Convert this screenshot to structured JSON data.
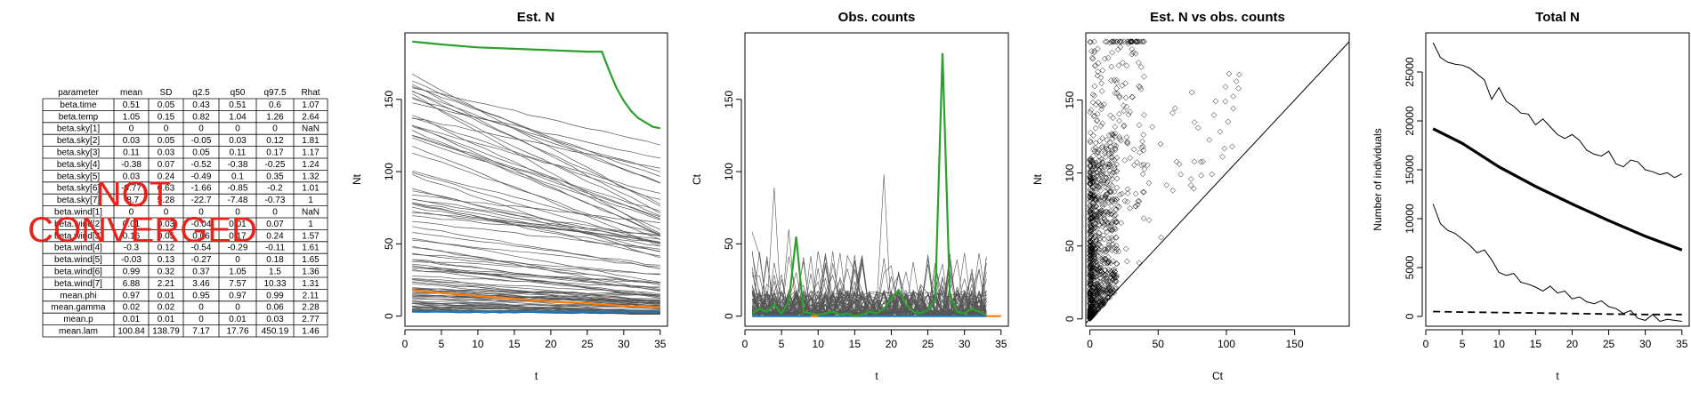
{
  "summary_table": {
    "headers": [
      "parameter",
      "mean",
      "SD",
      "q2.5",
      "q50",
      "q97.5",
      "Rhat"
    ],
    "rows": [
      [
        "beta.time",
        "0.51",
        "0.05",
        "0.43",
        "0.51",
        "0.6",
        "1.07"
      ],
      [
        "beta.temp",
        "1.05",
        "0.15",
        "0.82",
        "1.04",
        "1.26",
        "2.64"
      ],
      [
        "beta.sky[1]",
        "0",
        "0",
        "0",
        "0",
        "0",
        "NaN"
      ],
      [
        "beta.sky[2]",
        "0.03",
        "0.05",
        "-0.05",
        "0.03",
        "0.12",
        "1.81"
      ],
      [
        "beta.sky[3]",
        "0.11",
        "0.03",
        "0.05",
        "0.11",
        "0.17",
        "1.17"
      ],
      [
        "beta.sky[4]",
        "-0.38",
        "0.07",
        "-0.52",
        "-0.38",
        "-0.25",
        "1.24"
      ],
      [
        "beta.sky[5]",
        "0.03",
        "0.24",
        "-0.49",
        "0.1",
        "0.35",
        "1.32"
      ],
      [
        "beta.sky[6]",
        "-0.77",
        "0.63",
        "-1.66",
        "-0.85",
        "-0.2",
        "1.01"
      ],
      [
        "beta.sky[7]",
        "-8.7",
        "5.28",
        "-22.7",
        "-7.48",
        "-0.73",
        "1"
      ],
      [
        "beta.wind[1]",
        "0",
        "0",
        "0",
        "0",
        "0",
        "NaN"
      ],
      [
        "beta.wind[2]",
        "0.01",
        "0.03",
        "-0.04",
        "0.01",
        "0.07",
        "1"
      ],
      [
        "beta.wind[3]",
        "0.16",
        "0.05",
        "0.06",
        "0.17",
        "0.24",
        "1.57"
      ],
      [
        "beta.wind[4]",
        "-0.3",
        "0.12",
        "-0.54",
        "-0.29",
        "-0.11",
        "1.61"
      ],
      [
        "beta.wind[5]",
        "-0.03",
        "0.13",
        "-0.27",
        "0",
        "0.18",
        "1.65"
      ],
      [
        "beta.wind[6]",
        "0.99",
        "0.32",
        "0.37",
        "1.05",
        "1.5",
        "1.36"
      ],
      [
        "beta.wind[7]",
        "6.88",
        "2.21",
        "3.46",
        "7.57",
        "10.33",
        "1.31"
      ],
      [
        "mean.phi",
        "0.97",
        "0.01",
        "0.95",
        "0.97",
        "0.99",
        "2.11"
      ],
      [
        "mean.gamma",
        "0.02",
        "0.02",
        "0",
        "0",
        "0.06",
        "2.28"
      ],
      [
        "mean.p",
        "0.01",
        "0.01",
        "0",
        "0.01",
        "0.03",
        "2.77"
      ],
      [
        "mean.lam",
        "100.84",
        "138.79",
        "7.17",
        "17.76",
        "450.19",
        "1.46"
      ]
    ],
    "stamp": [
      "NOT",
      "CONVERGED"
    ],
    "stamp_color": "#e8231c"
  },
  "chart_data": [
    {
      "type": "line",
      "title": "Est. N",
      "xlabel": "t",
      "ylabel": "Nt",
      "xlim": [
        0,
        36
      ],
      "ylim": [
        -7,
        196
      ],
      "xticks": [
        0,
        5,
        10,
        15,
        20,
        25,
        30,
        35
      ],
      "yticks": [
        0,
        50,
        100,
        150
      ],
      "grid": false,
      "background_series": {
        "count": 110,
        "color": "#555555",
        "x": [
          1,
          35
        ],
        "start_range": [
          3,
          178
        ],
        "end_range": [
          1,
          106
        ]
      },
      "series": [
        {
          "color": "#2ca02c",
          "x": [
            1,
            3,
            5,
            10,
            15,
            20,
            25,
            27,
            28,
            29,
            30,
            31,
            32,
            33,
            34,
            35
          ],
          "values": [
            190,
            189,
            188,
            186,
            185,
            184,
            183,
            183,
            170,
            158,
            149,
            142,
            137,
            134,
            131,
            130
          ]
        },
        {
          "color": "#ff7f0e",
          "x": [
            1,
            5,
            10,
            15,
            20,
            25,
            30,
            35
          ],
          "values": [
            18,
            16,
            14,
            12,
            10,
            9,
            7,
            6
          ]
        },
        {
          "color": "#1f77b4",
          "x": [
            1,
            35
          ],
          "values": [
            3,
            3
          ]
        }
      ]
    },
    {
      "type": "line",
      "title": "Obs. counts",
      "xlabel": "t",
      "ylabel": "Ct",
      "xlim": [
        0,
        36
      ],
      "ylim": [
        -7,
        196
      ],
      "xticks": [
        0,
        5,
        10,
        15,
        20,
        25,
        30,
        35
      ],
      "yticks": [
        0,
        50,
        100,
        150
      ],
      "grid": false,
      "background_series": {
        "count": 70,
        "color": "#555555",
        "x": [
          1,
          33
        ],
        "peaks": [
          [
            4,
            89
          ],
          [
            19,
            98
          ],
          [
            6,
            60
          ],
          [
            12,
            45
          ],
          [
            25,
            40
          ],
          [
            16,
            42
          ],
          [
            1,
            58
          ]
        ]
      },
      "series": [
        {
          "color": "#2ca02c",
          "x": [
            1,
            2,
            3,
            4,
            5,
            6,
            7,
            8,
            9,
            10,
            11,
            12,
            13,
            14,
            15,
            16,
            17,
            18,
            19,
            20,
            21,
            22,
            23,
            24,
            25,
            26,
            27,
            28,
            29,
            30,
            31,
            32,
            33
          ],
          "values": [
            2,
            5,
            3,
            8,
            2,
            10,
            55,
            3,
            2,
            1,
            2,
            3,
            1,
            2,
            0,
            1,
            3,
            2,
            5,
            12,
            18,
            8,
            3,
            2,
            4,
            12,
            182,
            15,
            3,
            2,
            5,
            3,
            1
          ]
        },
        {
          "color": "#ff7f0e",
          "x": [
            9,
            10,
            33,
            35
          ],
          "values": [
            0,
            0,
            0,
            0
          ]
        },
        {
          "color": "#1f77b4",
          "x": [
            1,
            33
          ],
          "values": [
            0,
            0
          ]
        }
      ]
    },
    {
      "type": "scatter",
      "title": "Est. N vs obs. counts",
      "xlabel": "Ct",
      "ylabel": "Nt",
      "xlim": [
        -3,
        190
      ],
      "ylim": [
        -5,
        196
      ],
      "xticks": [
        0,
        50,
        100,
        150
      ],
      "yticks": [
        0,
        50,
        100,
        150
      ],
      "grid": false,
      "reference_line": "y = x",
      "marker": "open-diamond",
      "point_count": 1100
    },
    {
      "type": "line",
      "title": "Total N",
      "xlabel": "t",
      "ylabel": "Number of individuals",
      "xlim": [
        0,
        36
      ],
      "ylim": [
        -1000,
        29000
      ],
      "xticks": [
        0,
        5,
        10,
        15,
        20,
        25,
        30,
        35
      ],
      "yticks": [
        0,
        5000,
        10000,
        15000,
        20000,
        25000
      ],
      "grid": false,
      "series": [
        {
          "style": "thin",
          "x": [
            1,
            2,
            3,
            4,
            5,
            6,
            7,
            8,
            9,
            10,
            11,
            12,
            13,
            14,
            15,
            16,
            17,
            18,
            19,
            20,
            21,
            22,
            23,
            24,
            25,
            26,
            27,
            28,
            29,
            30,
            31,
            32,
            33,
            34,
            35
          ],
          "values": [
            28000,
            26500,
            26000,
            25800,
            25700,
            25400,
            24800,
            24200,
            22200,
            23400,
            22000,
            21500,
            20800,
            20700,
            19600,
            20200,
            19400,
            18600,
            18200,
            18600,
            18000,
            17000,
            16600,
            16400,
            16900,
            15600,
            15300,
            16000,
            15800,
            15000,
            14800,
            14500,
            14700,
            14200,
            14600
          ]
        },
        {
          "style": "bold",
          "x": [
            1,
            5,
            10,
            15,
            20,
            25,
            30,
            35
          ],
          "values": [
            19200,
            17700,
            15300,
            13300,
            11500,
            9800,
            8200,
            6800
          ]
        },
        {
          "style": "thin",
          "x": [
            1,
            2,
            3,
            4,
            5,
            6,
            7,
            8,
            9,
            10,
            11,
            12,
            13,
            14,
            15,
            16,
            17,
            18,
            19,
            20,
            21,
            22,
            23,
            24,
            25,
            26,
            27,
            28,
            29,
            30,
            31,
            32,
            33,
            34,
            35
          ],
          "values": [
            11500,
            9500,
            8800,
            8500,
            7900,
            7300,
            6500,
            6800,
            5800,
            4500,
            4200,
            4400,
            3500,
            3300,
            3000,
            2600,
            3100,
            2400,
            2600,
            1800,
            2000,
            1500,
            1300,
            1600,
            1000,
            800,
            300,
            600,
            -200,
            -400,
            200,
            -500,
            -300,
            -400,
            -500
          ]
        },
        {
          "style": "dashed",
          "x": [
            1,
            5,
            10,
            15,
            20,
            25,
            30,
            35
          ],
          "values": [
            500,
            450,
            400,
            350,
            300,
            250,
            200,
            200
          ]
        }
      ]
    }
  ]
}
